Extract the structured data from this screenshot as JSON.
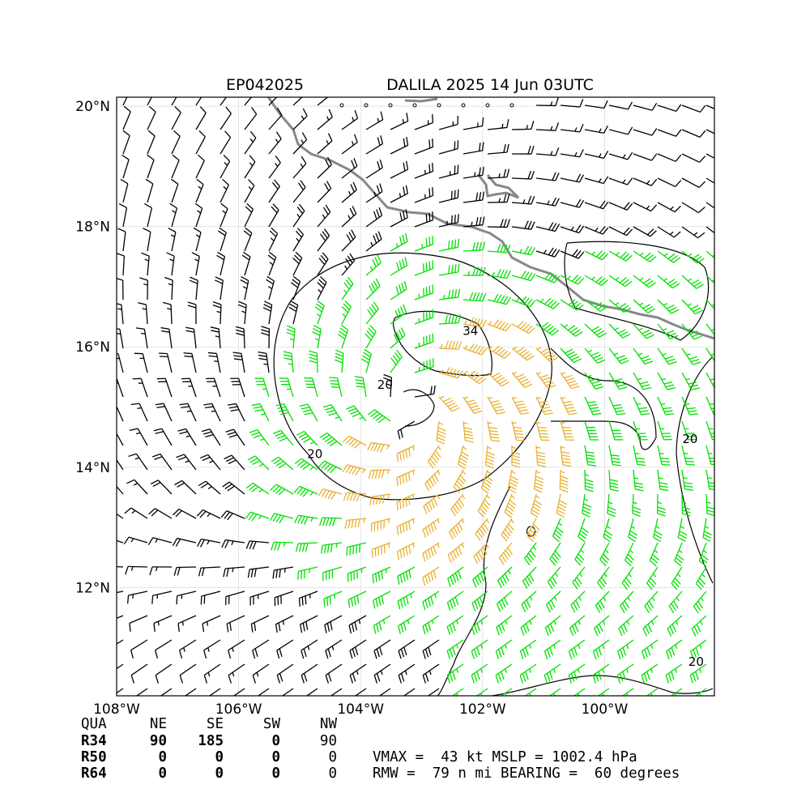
{
  "chart_data": {
    "type": "wind-barb-map",
    "title_left": "EP042025",
    "title_right": "DALILA 2025 14 Jun 03UTC",
    "xlim": [
      -108.0,
      -98.2
    ],
    "ylim": [
      10.2,
      20.15
    ],
    "xticks": [
      {
        "value": -108,
        "label": "108°W"
      },
      {
        "value": -106,
        "label": "106°W"
      },
      {
        "value": -104,
        "label": "104°W"
      },
      {
        "value": -102,
        "label": "102°W"
      },
      {
        "value": -100,
        "label": "100°W"
      }
    ],
    "yticks": [
      {
        "value": 12,
        "label": "12°N"
      },
      {
        "value": 14,
        "label": "14°N"
      },
      {
        "value": 16,
        "label": "16°N"
      },
      {
        "value": 18,
        "label": "18°N"
      },
      {
        "value": 20,
        "label": "20°N"
      }
    ],
    "grid": true,
    "storm_center": {
      "lon": -103.15,
      "lat": 15.0
    },
    "contour_levels": [
      20,
      34
    ],
    "contour_labels": [
      {
        "text": "20",
        "lon": -103.6,
        "lat": 15.3
      },
      {
        "text": "20",
        "lon": -104.75,
        "lat": 14.15
      },
      {
        "text": "34",
        "lon": -102.2,
        "lat": 16.2
      },
      {
        "text": "20",
        "lon": -98.6,
        "lat": 14.4
      },
      {
        "text": "20",
        "lon": -98.5,
        "lat": 10.7
      }
    ],
    "wind_color_bands": [
      {
        "min": 0,
        "max": 34,
        "color": "#000000"
      },
      {
        "min": 34,
        "max": 50,
        "color": "#00e000"
      },
      {
        "min": 50,
        "max": 64,
        "color": "#e8b030"
      }
    ],
    "wind_radii_table": {
      "header": [
        "QUA",
        "NE",
        "SE",
        "SW",
        "NW"
      ],
      "rows": [
        {
          "name": "R34",
          "values": [
            "90",
            "185",
            "0",
            "90"
          ]
        },
        {
          "name": "R50",
          "values": [
            "0",
            "0",
            "0",
            "0"
          ]
        },
        {
          "name": "R64",
          "values": [
            "0",
            "0",
            "0",
            "0"
          ]
        }
      ]
    },
    "storm_info": {
      "line1": "VMAX =  43 kt MSLP = 1002.4 hPa",
      "line2": "RMW =  79 n mi BEARING =  60 degrees"
    }
  },
  "colors": {
    "coastline": "#888888",
    "grid": "#dddddd",
    "barb_low": "#000000",
    "barb_ts": "#00e000",
    "barb_strong": "#e8b030",
    "contour": "#000000"
  }
}
